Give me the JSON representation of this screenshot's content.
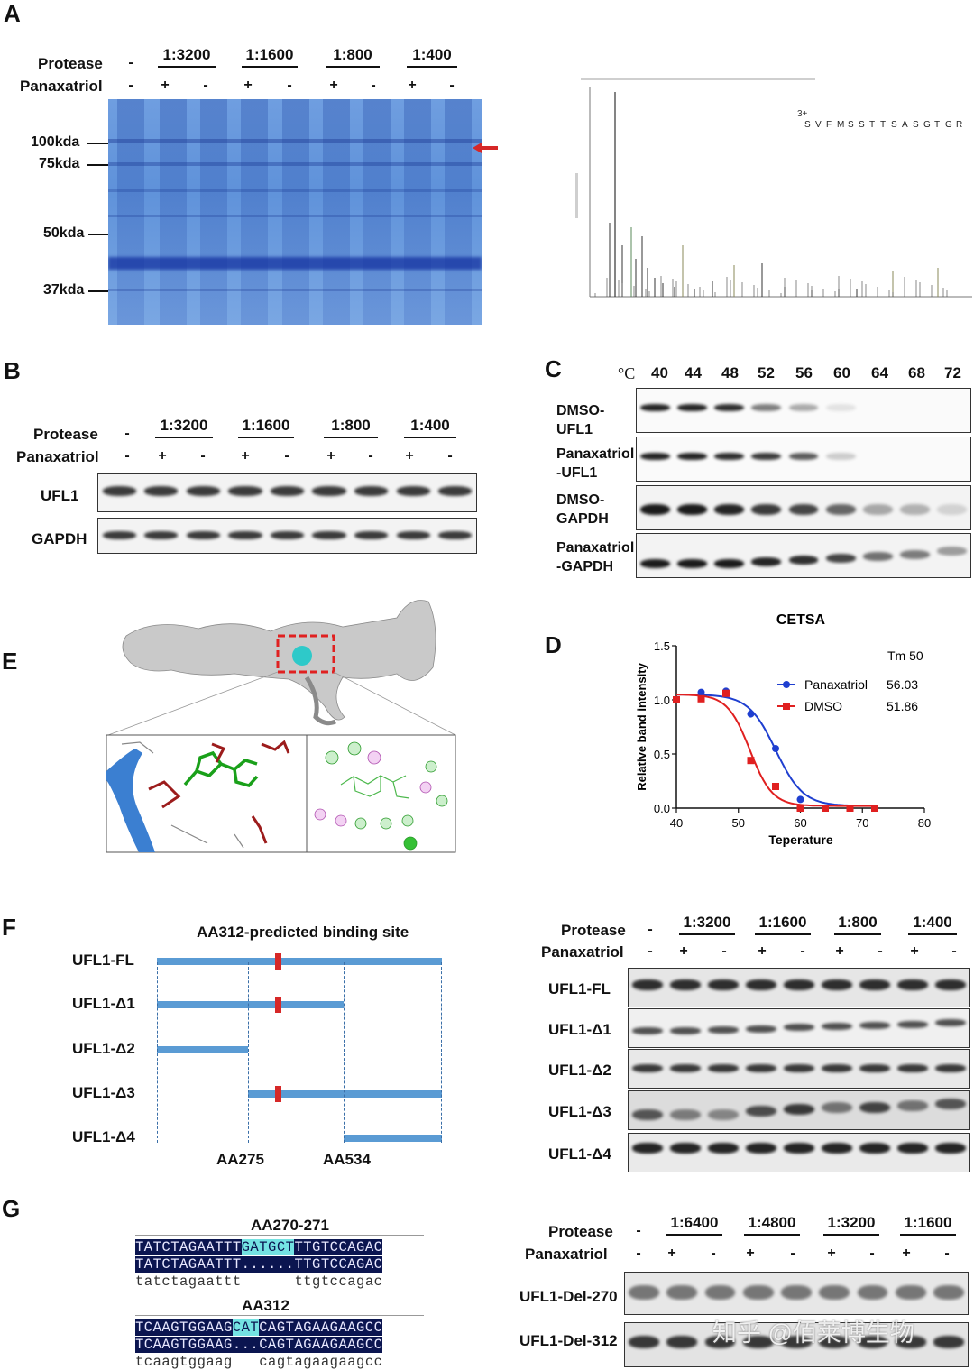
{
  "panels": {
    "A": "A",
    "B": "B",
    "C": "C",
    "D": "D",
    "E": "E",
    "F": "F",
    "G": "G"
  },
  "common": {
    "protease": "Protease",
    "panaxatriol": "Panaxatriol",
    "minus": "-",
    "plus": "+"
  },
  "ratios_main": [
    "1:3200",
    "1:1600",
    "1:800",
    "1:400"
  ],
  "ratios_g": [
    "1:6400",
    "1:4800",
    "1:3200",
    "1:1600"
  ],
  "panelA": {
    "markers": [
      "100kda",
      "75kda",
      "50kda",
      "37kda"
    ],
    "ms_seq": [
      "S",
      "V",
      "F",
      "M",
      "S",
      "S",
      "T",
      "T",
      "S",
      "A",
      "S",
      "G",
      "T",
      "G",
      "R"
    ],
    "ms_charge": "3+"
  },
  "panelB": {
    "rows": [
      "UFL1",
      "GAPDH"
    ]
  },
  "panelC": {
    "unit": "°C",
    "temps": [
      "40",
      "44",
      "48",
      "52",
      "56",
      "60",
      "64",
      "68",
      "72"
    ],
    "rows": [
      [
        "DMSO-",
        "UFL1"
      ],
      [
        "Panaxatriol",
        "-UFL1"
      ],
      [
        "DMSO-",
        "GAPDH"
      ],
      [
        "Panaxatriol",
        "-GAPDH"
      ]
    ]
  },
  "panelE": {
    "label": "E"
  },
  "panelF": {
    "title": "AA312-predicted binding site",
    "constructs": [
      "UFL1-FL",
      "UFL1-Δ1",
      "UFL1-Δ2",
      "UFL1-Δ3",
      "UFL1-Δ4"
    ],
    "aa_marks": [
      "AA275",
      "AA534"
    ]
  },
  "panelG": {
    "site1": "AA270-271",
    "site1_rows": [
      {
        "pre": "TATCTAGAATTT",
        "hl": "GATGCT",
        "post": "TTGTCCAGAC"
      },
      {
        "pre": "TATCTAGAATTT",
        "hl": "......",
        "post": "TTGTCCAGAC"
      },
      {
        "pre": "tatctagaattt",
        "hl": "      ",
        "post": "ttgtccagac"
      }
    ],
    "site2": "AA312",
    "site2_rows": [
      {
        "pre": "TCAAGTGGAAG",
        "hl": "CAT",
        "post": "CAGTAGAAGAAGCC"
      },
      {
        "pre": "TCAAGTGGAAG",
        "hl": "...",
        "post": "CAGTAGAAGAAGCC"
      },
      {
        "pre": "tcaagtggaag",
        "hl": "   ",
        "post": "cagtagaagaagcc"
      }
    ],
    "rows": [
      "UFL1-Del-270",
      "UFL1-Del-312"
    ],
    "watermark": "知乎 @佰莱博生物"
  },
  "chart_data": {
    "type": "scatter",
    "title": "CETSA",
    "xlabel": "Teperature",
    "ylabel": "Relative band intensity",
    "xlim": [
      40,
      80
    ],
    "ylim": [
      0.0,
      1.5
    ],
    "xticks": [
      40,
      50,
      60,
      70,
      80
    ],
    "yticks": [
      0.0,
      0.5,
      1.0,
      1.5
    ],
    "legend_header": "Tm 50",
    "legend_position": "top-right",
    "series": [
      {
        "name": "Panaxatriol",
        "tm": "56.03",
        "color": "#1f3fd0",
        "x": [
          40,
          44,
          48,
          52,
          56,
          60,
          64,
          68,
          72
        ],
        "y": [
          1.0,
          1.07,
          1.08,
          0.87,
          0.55,
          0.08,
          0.0,
          0.0,
          0.0
        ],
        "fit_tm": 56.03
      },
      {
        "name": "DMSO",
        "tm": "51.86",
        "color": "#e02020",
        "x": [
          40,
          44,
          48,
          52,
          56,
          60,
          64,
          68,
          72
        ],
        "y": [
          1.0,
          1.01,
          1.06,
          0.44,
          0.2,
          0.0,
          0.0,
          0.0,
          0.0
        ],
        "fit_tm": 51.86
      }
    ]
  }
}
